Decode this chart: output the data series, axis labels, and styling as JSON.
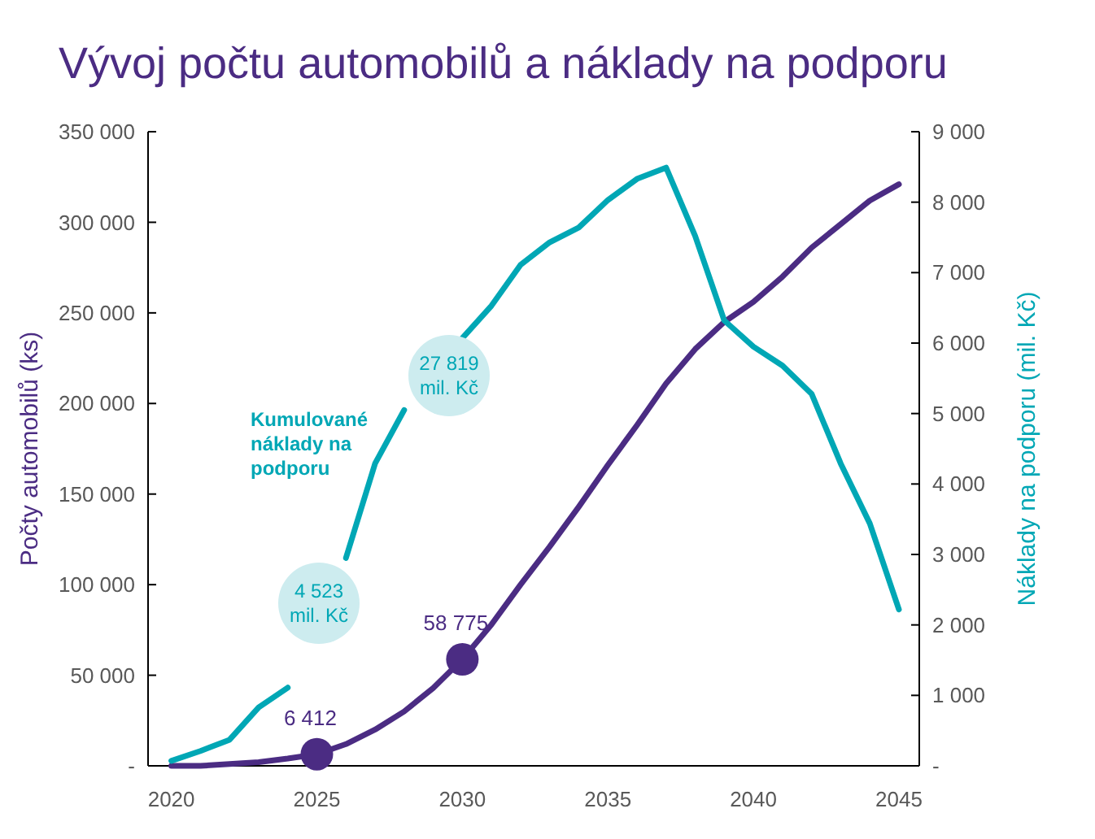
{
  "chart_data": {
    "type": "line",
    "title": "Vývoj počtu automobilů a náklady na podporu",
    "ylabel": "Počty automobilů (ks)",
    "y2label": "Náklady na podporu (mil. Kč)",
    "x": [
      2020,
      2021,
      2022,
      2023,
      2024,
      2025,
      2026,
      2027,
      2028,
      2029,
      2030,
      2031,
      2032,
      2033,
      2034,
      2035,
      2036,
      2037,
      2038,
      2039,
      2040,
      2041,
      2042,
      2043,
      2044,
      2045
    ],
    "xlim": [
      2019.2,
      2045.7
    ],
    "xticks": [
      2020,
      2025,
      2030,
      2035,
      2040,
      2045
    ],
    "ylim": [
      0,
      350000
    ],
    "yticks": [
      {
        "value": 0,
        "label": "-"
      },
      {
        "value": 50000,
        "label": "50 000"
      },
      {
        "value": 100000,
        "label": "100 000"
      },
      {
        "value": 150000,
        "label": "150 000"
      },
      {
        "value": 200000,
        "label": "200 000"
      },
      {
        "value": 250000,
        "label": "250 000"
      },
      {
        "value": 300000,
        "label": "300 000"
      },
      {
        "value": 350000,
        "label": "350 000"
      }
    ],
    "y2lim": [
      0,
      9000
    ],
    "y2ticks": [
      {
        "value": 0,
        "label": "-"
      },
      {
        "value": 1000,
        "label": "1 000"
      },
      {
        "value": 2000,
        "label": "2 000"
      },
      {
        "value": 3000,
        "label": "3 000"
      },
      {
        "value": 4000,
        "label": "4 000"
      },
      {
        "value": 5000,
        "label": "5 000"
      },
      {
        "value": 6000,
        "label": "6 000"
      },
      {
        "value": 7000,
        "label": "7 000"
      },
      {
        "value": 8000,
        "label": "8 000"
      },
      {
        "value": 9000,
        "label": "9 000"
      }
    ],
    "series": [
      {
        "color": "#4b2c83",
        "values": [
          0,
          0,
          1000,
          2000,
          4000,
          6412,
          12000,
          20000,
          30000,
          43000,
          58775,
          78000,
          100000,
          121000,
          143000,
          166000,
          188000,
          211000,
          230000,
          245000,
          256000,
          270000,
          286000,
          299000,
          312000,
          321000
        ],
        "value_labels": [
          null,
          null,
          null,
          null,
          null,
          "6 412",
          null,
          null,
          null,
          null,
          "58 775",
          null,
          null,
          null,
          null,
          null,
          null,
          null,
          null,
          null,
          null,
          null,
          null,
          null,
          null,
          null
        ]
      },
      {
        "color": "#00a7b5",
        "axis": "y2",
        "values": [
          70,
          210,
          370,
          830,
          1110,
          null,
          2950,
          4290,
          5050,
          null,
          6070,
          6530,
          7110,
          7430,
          7640,
          8030,
          8330,
          8490,
          7520,
          6320,
          5950,
          5680,
          5280,
          4290,
          3440,
          2220
        ]
      }
    ],
    "annotations": [
      "4 523\nmil. Kč",
      "27 819\nmil. Kč",
      "Kumulované\nnáklady na\npodporu"
    ],
    "grid": false,
    "line_style": "solid"
  }
}
